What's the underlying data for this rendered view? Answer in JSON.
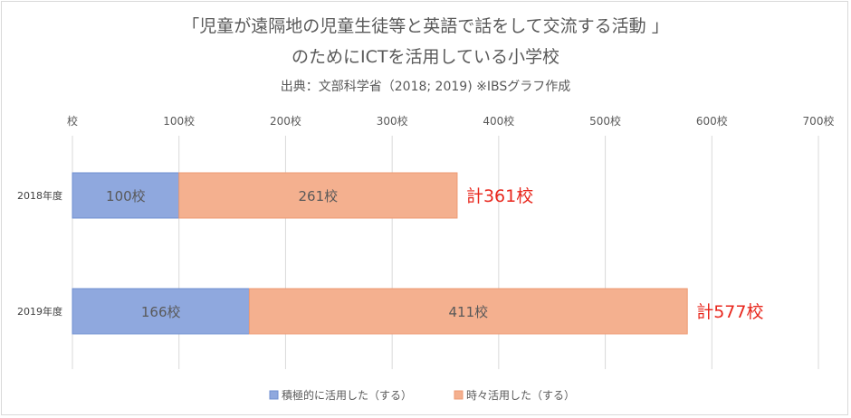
{
  "title_line1": "「児童が遠隔地の児童生徒等と英語で話をして交流する活動 」",
  "title_line2": "のためにICTを活用している小学校",
  "subtitle": "出典：文部科学省（2018; 2019) ※IBSグラフ作成",
  "chart_data": {
    "type": "bar",
    "orientation": "horizontal",
    "stacked": true,
    "categories": [
      "2018年度",
      "2019年度"
    ],
    "series": [
      {
        "name": "積極的に活用した（する）",
        "values": [
          100,
          166
        ],
        "labels": [
          "100校",
          "166校"
        ],
        "color": "#8fa8de"
      },
      {
        "name": "時々活用した（する）",
        "values": [
          261,
          411
        ],
        "labels": [
          "261校",
          "411校"
        ],
        "color": "#f4b08f"
      }
    ],
    "totals": [
      361,
      577
    ],
    "total_labels": [
      "計361校",
      "計577校"
    ],
    "total_label_color": "#e8261c",
    "xlim": [
      0,
      700
    ],
    "x_ticks": [
      0,
      100,
      200,
      300,
      400,
      500,
      600,
      700
    ],
    "x_tick_labels": [
      "校",
      "100校",
      "200校",
      "300校",
      "400校",
      "500校",
      "600校",
      "700校"
    ],
    "grid": true,
    "legend_position": "bottom"
  }
}
